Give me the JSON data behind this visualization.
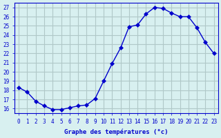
{
  "hours": [
    0,
    1,
    2,
    3,
    4,
    5,
    6,
    7,
    8,
    9,
    10,
    11,
    12,
    13,
    14,
    15,
    16,
    17,
    18,
    19,
    20,
    21,
    22,
    23
  ],
  "temperatures": [
    18.3,
    17.8,
    16.8,
    16.3,
    15.9,
    15.9,
    16.1,
    16.3,
    16.4,
    17.1,
    19.0,
    20.9,
    22.6,
    24.9,
    25.1,
    26.3,
    27.0,
    26.9,
    26.4,
    26.0,
    26.0,
    24.8,
    23.2,
    22.0
  ],
  "line_color": "#0000cc",
  "marker": "D",
  "marker_size": 3,
  "bg_color": "#d8f0f0",
  "grid_color": "#b0c8c8",
  "axis_color": "#0000cc",
  "tick_color": "#0000cc",
  "xlabel": "Graphe des températures (°c)",
  "ylabel_ticks": [
    16,
    17,
    18,
    19,
    20,
    21,
    22,
    23,
    24,
    25,
    26,
    27
  ],
  "ylim": [
    15.5,
    27.5
  ],
  "xlim": [
    -0.5,
    23.5
  ],
  "font_family": "monospace"
}
